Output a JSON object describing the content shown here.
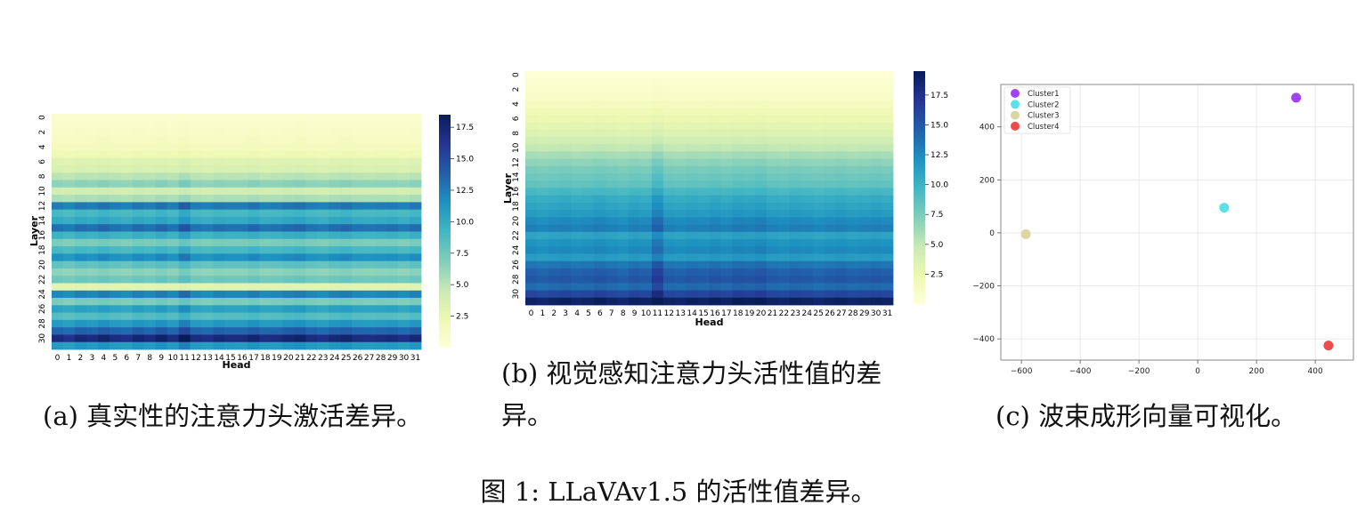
{
  "chart_data": [
    {
      "type": "heatmap",
      "id": "a",
      "xlabel": "Head",
      "ylabel": "Layer",
      "x_ticks": [
        "0",
        "1",
        "2",
        "3",
        "4",
        "5",
        "6",
        "7",
        "8",
        "9",
        "10",
        "11",
        "12",
        "13",
        "14",
        "15",
        "16",
        "17",
        "18",
        "19",
        "20",
        "21",
        "22",
        "23",
        "24",
        "25",
        "26",
        "27",
        "28",
        "29",
        "30",
        "31"
      ],
      "y_ticks": [
        "0",
        "2",
        "4",
        "6",
        "8",
        "10",
        "12",
        "14",
        "16",
        "18",
        "20",
        "22",
        "24",
        "26",
        "28",
        "30"
      ],
      "colorbar_ticks": [
        "2.5",
        "5.0",
        "7.5",
        "10.0",
        "12.5",
        "15.0",
        "17.5"
      ],
      "colorbar_range": [
        0,
        18.5
      ],
      "layer_values": [
        0.6,
        0.8,
        1.0,
        1.3,
        1.6,
        2.0,
        3.2,
        3.5,
        5.0,
        6.5,
        4.0,
        5.5,
        12.5,
        9.0,
        10.0,
        13.0,
        9.5,
        7.0,
        9.0,
        11.5,
        8.0,
        6.5,
        7.5,
        3.0,
        12.0,
        7.0,
        10.5,
        8.5,
        11.0,
        13.5,
        17.0,
        11.0
      ],
      "head_factor": [
        1.0,
        0.97,
        1.02,
        1.0,
        1.04,
        1.0,
        0.98,
        1.03,
        1.0,
        1.05,
        1.0,
        1.12,
        1.0,
        0.98,
        1.02,
        1.0,
        1.0,
        1.04,
        0.99,
        1.0,
        1.03,
        1.05,
        1.0,
        0.98,
        1.02,
        1.04,
        1.0,
        0.99,
        1.0,
        1.01,
        0.98,
        1.02
      ],
      "caption": "(a) 真实性的注意力头激活差异。"
    },
    {
      "type": "heatmap",
      "id": "b",
      "xlabel": "Head",
      "ylabel": "Layer",
      "x_ticks": [
        "0",
        "1",
        "2",
        "3",
        "4",
        "5",
        "6",
        "7",
        "8",
        "9",
        "10",
        "11",
        "12",
        "13",
        "14",
        "15",
        "16",
        "17",
        "18",
        "19",
        "20",
        "21",
        "22",
        "23",
        "24",
        "25",
        "26",
        "27",
        "28",
        "29",
        "30",
        "31"
      ],
      "y_ticks": [
        "0",
        "2",
        "4",
        "6",
        "8",
        "10",
        "12",
        "14",
        "16",
        "18",
        "20",
        "22",
        "24",
        "26",
        "28",
        "30"
      ],
      "colorbar_ticks": [
        "2.5",
        "5.0",
        "7.5",
        "10.0",
        "12.5",
        "15.0",
        "17.5"
      ],
      "colorbar_range": [
        0,
        19.5
      ],
      "layer_values": [
        0.3,
        0.5,
        0.8,
        1.0,
        1.5,
        2.0,
        2.5,
        3.0,
        3.5,
        4.2,
        5.0,
        6.0,
        6.8,
        7.5,
        8.0,
        8.5,
        9.5,
        10.5,
        11.0,
        11.5,
        12.5,
        13.0,
        11.0,
        12.0,
        12.5,
        11.5,
        13.5,
        14.5,
        15.0,
        14.0,
        16.0,
        19.0
      ],
      "head_factor": [
        1.0,
        0.98,
        1.0,
        1.01,
        0.99,
        1.0,
        1.02,
        1.0,
        0.98,
        1.01,
        1.0,
        1.12,
        1.0,
        0.99,
        1.01,
        1.0,
        1.02,
        1.0,
        1.03,
        1.02,
        1.04,
        1.0,
        0.99,
        1.01,
        1.0,
        0.98,
        1.0,
        1.01,
        0.99,
        1.0,
        1.01,
        1.0
      ],
      "caption_line1": "(b) 视觉感知注意力头活性值的差",
      "caption_line2": "异。"
    },
    {
      "type": "scatter",
      "id": "c",
      "xlim": [
        -670,
        530
      ],
      "ylim": [
        -480,
        560
      ],
      "x_ticks": [
        -600,
        -400,
        -200,
        0,
        200,
        400
      ],
      "y_ticks": [
        -400,
        -200,
        0,
        200,
        400
      ],
      "grid": true,
      "legend_position": "top-left",
      "series": [
        {
          "name": "Cluster1",
          "color": "#a142f4",
          "points": [
            [
              335,
              510
            ]
          ]
        },
        {
          "name": "Cluster2",
          "color": "#5ce1e6",
          "points": [
            [
              90,
              95
            ]
          ]
        },
        {
          "name": "Cluster3",
          "color": "#d8d8a0",
          "points": [
            [
              -585,
              -5
            ]
          ]
        },
        {
          "name": "Cluster4",
          "color": "#f04a4a",
          "points": [
            [
              445,
              -425
            ]
          ]
        }
      ],
      "caption": "(c) 波束成形向量可视化。"
    }
  ],
  "figure_caption": "图 1: LLaVAv1.5 的活性值差异。"
}
